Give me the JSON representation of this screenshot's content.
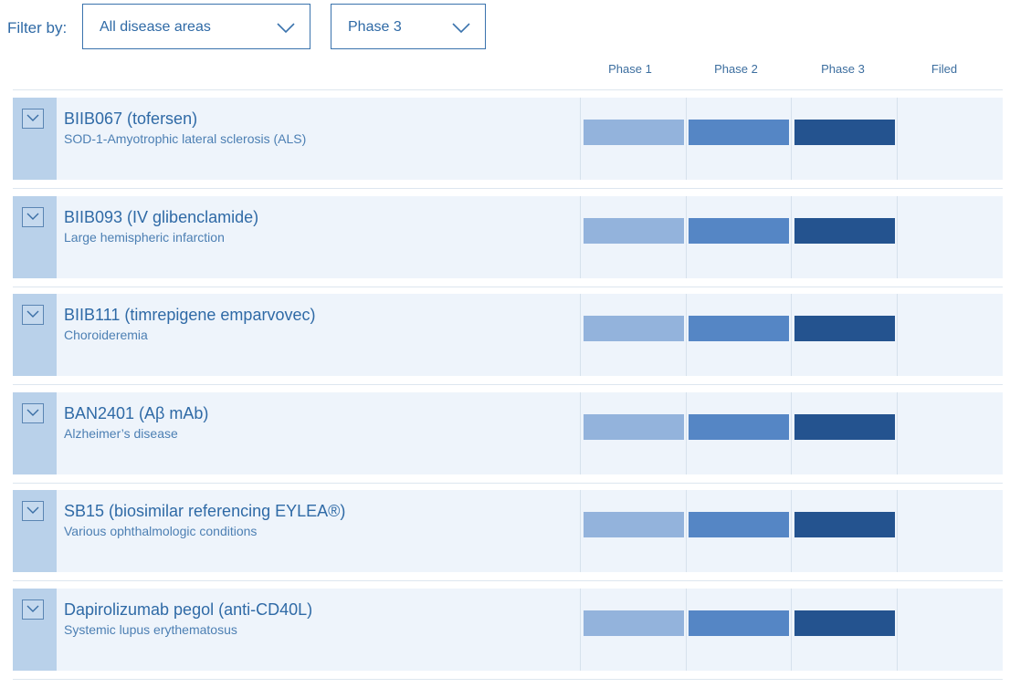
{
  "filter": {
    "label": "Filter by:",
    "disease_area": "All disease areas",
    "phase": "Phase 3"
  },
  "phase_headers": [
    "Phase 1",
    "Phase 2",
    "Phase 3",
    "Filed"
  ],
  "rows": [
    {
      "name": "BIIB067 (tofersen)",
      "description": "SOD-1-Amyotrophic lateral sclerosis (ALS)",
      "phase_reached": "Phase 3"
    },
    {
      "name": "BIIB093 (IV glibenclamide)",
      "description": "Large hemispheric infarction",
      "phase_reached": "Phase 3"
    },
    {
      "name": "BIIB111 (timrepigene emparvovec)",
      "description": "Choroideremia",
      "phase_reached": "Phase 3"
    },
    {
      "name": "BAN2401 (Aβ mAb)",
      "description": "Alzheimer’s disease",
      "phase_reached": "Phase 3"
    },
    {
      "name": "SB15 (biosimilar referencing EYLEA®)",
      "description": "Various ophthalmologic conditions",
      "phase_reached": "Phase 3"
    },
    {
      "name": "Dapirolizumab pegol (anti-CD40L)",
      "description": "Systemic lupus erythematosus",
      "phase_reached": "Phase 3"
    }
  ],
  "colors": {
    "phase1_bar": "#93b3dc",
    "phase2_bar": "#5586c5",
    "phase3_bar": "#24538f",
    "row_background": "#eef4fb",
    "row_side": "#b9d1ea",
    "text": "#2f6aa6"
  }
}
